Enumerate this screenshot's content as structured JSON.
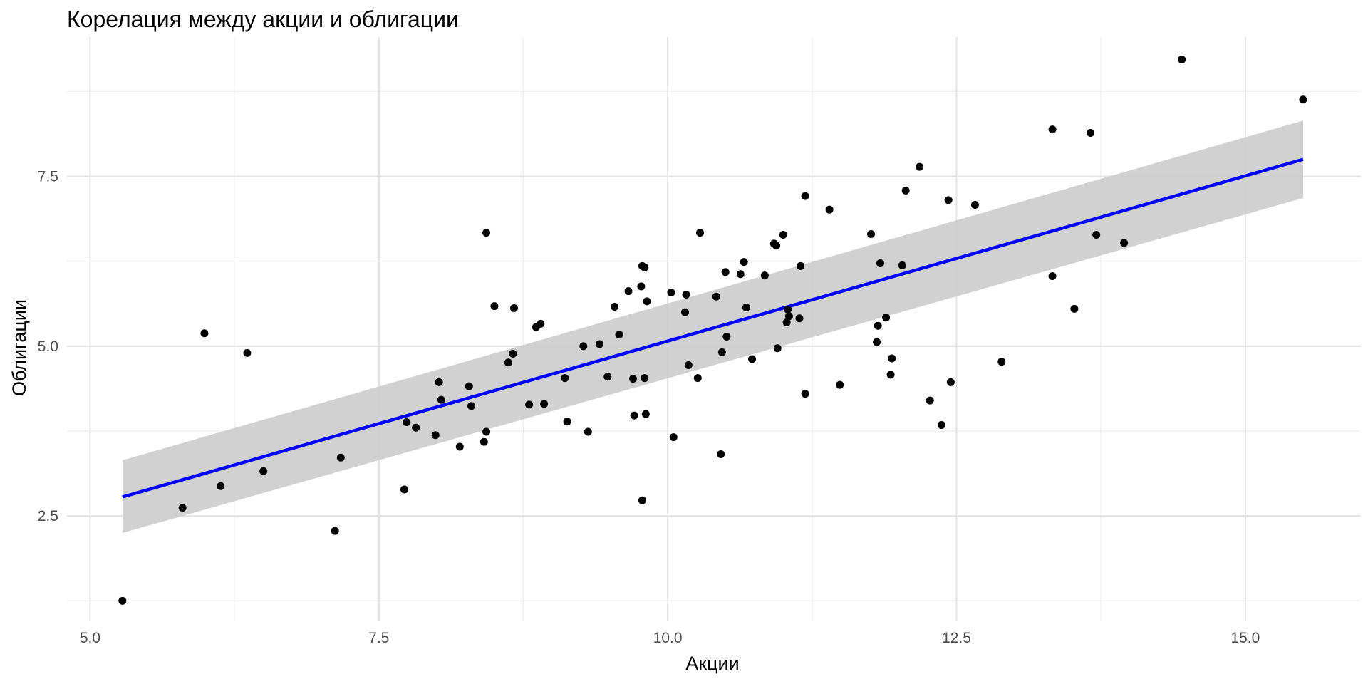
{
  "chart_data": {
    "type": "scatter",
    "title": "Корелация между акции и облигации",
    "xlabel": "Акции",
    "ylabel": "Облигации",
    "xlim": [
      4.8,
      16.0
    ],
    "ylim": [
      0.95,
      9.55
    ],
    "x_ticks": [
      5.0,
      7.5,
      10.0,
      12.5,
      15.0
    ],
    "x_tick_labels": [
      "5.0",
      "7.5",
      "10.0",
      "12.5",
      "15.0"
    ],
    "y_ticks": [
      2.5,
      5.0,
      7.5
    ],
    "y_tick_labels": [
      "2.5",
      "5.0",
      "7.5"
    ],
    "grid": true,
    "legend": "none",
    "point_color": "#000000",
    "line_color": "#0000ff",
    "band_color": "#cccccc",
    "points": [
      [
        5.28,
        1.25
      ],
      [
        5.8,
        2.62
      ],
      [
        5.99,
        5.19
      ],
      [
        6.13,
        2.94
      ],
      [
        6.36,
        4.9
      ],
      [
        6.5,
        3.16
      ],
      [
        7.12,
        2.28
      ],
      [
        7.17,
        3.36
      ],
      [
        7.72,
        2.89
      ],
      [
        7.74,
        3.88
      ],
      [
        7.82,
        3.8
      ],
      [
        7.99,
        3.69
      ],
      [
        8.02,
        4.47
      ],
      [
        8.04,
        4.21
      ],
      [
        8.2,
        3.52
      ],
      [
        8.28,
        4.41
      ],
      [
        8.3,
        4.12
      ],
      [
        8.41,
        3.59
      ],
      [
        8.43,
        3.74
      ],
      [
        8.43,
        6.67
      ],
      [
        8.5,
        5.59
      ],
      [
        8.62,
        4.76
      ],
      [
        8.66,
        4.89
      ],
      [
        8.67,
        5.56
      ],
      [
        8.8,
        4.14
      ],
      [
        8.86,
        5.28
      ],
      [
        8.9,
        5.33
      ],
      [
        8.93,
        4.15
      ],
      [
        9.11,
        4.53
      ],
      [
        9.13,
        3.89
      ],
      [
        9.27,
        5.0
      ],
      [
        9.31,
        3.74
      ],
      [
        9.41,
        5.03
      ],
      [
        9.48,
        4.55
      ],
      [
        9.54,
        5.58
      ],
      [
        9.58,
        5.17
      ],
      [
        9.66,
        5.81
      ],
      [
        9.7,
        4.52
      ],
      [
        9.71,
        3.98
      ],
      [
        9.77,
        5.88
      ],
      [
        9.78,
        2.73
      ],
      [
        9.78,
        6.18
      ],
      [
        9.8,
        6.16
      ],
      [
        9.8,
        4.53
      ],
      [
        9.81,
        4.0
      ],
      [
        9.82,
        5.66
      ],
      [
        10.03,
        5.79
      ],
      [
        10.05,
        3.66
      ],
      [
        10.15,
        5.5
      ],
      [
        10.16,
        5.76
      ],
      [
        10.18,
        4.72
      ],
      [
        10.26,
        4.53
      ],
      [
        10.28,
        6.67
      ],
      [
        10.42,
        5.73
      ],
      [
        10.46,
        3.41
      ],
      [
        10.47,
        4.91
      ],
      [
        10.5,
        6.09
      ],
      [
        10.51,
        5.14
      ],
      [
        10.63,
        6.06
      ],
      [
        10.66,
        6.24
      ],
      [
        10.68,
        5.57
      ],
      [
        10.73,
        4.81
      ],
      [
        10.84,
        6.04
      ],
      [
        10.92,
        6.51
      ],
      [
        10.94,
        6.48
      ],
      [
        10.95,
        4.97
      ],
      [
        11.0,
        6.64
      ],
      [
        11.03,
        5.35
      ],
      [
        11.04,
        5.54
      ],
      [
        11.05,
        5.44
      ],
      [
        11.14,
        5.41
      ],
      [
        11.15,
        6.18
      ],
      [
        11.19,
        4.3
      ],
      [
        11.19,
        7.21
      ],
      [
        11.4,
        7.01
      ],
      [
        11.49,
        4.43
      ],
      [
        11.76,
        6.65
      ],
      [
        11.81,
        5.06
      ],
      [
        11.82,
        5.3
      ],
      [
        11.84,
        6.22
      ],
      [
        11.89,
        5.42
      ],
      [
        11.93,
        4.58
      ],
      [
        11.94,
        4.82
      ],
      [
        12.03,
        6.19
      ],
      [
        12.06,
        7.29
      ],
      [
        12.18,
        7.64
      ],
      [
        12.27,
        4.2
      ],
      [
        12.37,
        3.84
      ],
      [
        12.43,
        7.15
      ],
      [
        12.45,
        4.47
      ],
      [
        12.66,
        7.08
      ],
      [
        12.89,
        4.77
      ],
      [
        13.33,
        8.19
      ],
      [
        13.33,
        6.03
      ],
      [
        13.52,
        5.55
      ],
      [
        13.66,
        8.14
      ],
      [
        13.71,
        6.64
      ],
      [
        13.95,
        6.52
      ],
      [
        14.45,
        9.22
      ],
      [
        15.5,
        8.63
      ]
    ],
    "fit_line": {
      "x": [
        5.28,
        15.5
      ],
      "y": [
        2.78,
        7.75
      ]
    },
    "confidence_band": {
      "x": [
        5.28,
        15.5
      ],
      "lower": [
        2.25,
        7.18
      ],
      "upper": [
        3.32,
        8.32
      ]
    }
  }
}
